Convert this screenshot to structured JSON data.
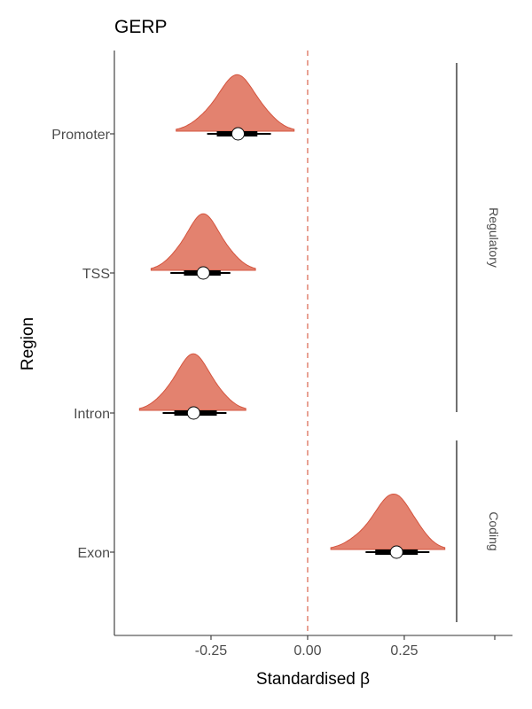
{
  "chart_data": {
    "type": "density-interval",
    "title": "GERP",
    "xlabel": "Standardised β",
    "ylabel": "Region",
    "xlim": [
      -0.5,
      0.53
    ],
    "x_ticks": [
      -0.25,
      0.0,
      0.25
    ],
    "x_tick_labels": [
      "-0.25",
      "0.00",
      "0.25"
    ],
    "reference_line": {
      "x": 0.0,
      "style": "dashed",
      "color": "#e07b68"
    },
    "categories": [
      "Promoter",
      "TSS",
      "Intron",
      "Exon"
    ],
    "series": [
      {
        "category": "Promoter",
        "median": -0.18,
        "interval_66": [
          -0.235,
          -0.13
        ],
        "interval_95": [
          -0.26,
          -0.095
        ],
        "range": [
          -0.34,
          -0.035
        ]
      },
      {
        "category": "TSS",
        "median": -0.27,
        "interval_66": [
          -0.32,
          -0.225
        ],
        "interval_95": [
          -0.355,
          -0.2
        ],
        "range": [
          -0.405,
          -0.135
        ]
      },
      {
        "category": "Intron",
        "median": -0.295,
        "interval_66": [
          -0.345,
          -0.235
        ],
        "interval_95": [
          -0.375,
          -0.21
        ],
        "range": [
          -0.435,
          -0.16
        ]
      },
      {
        "category": "Exon",
        "median": 0.23,
        "interval_66": [
          0.175,
          0.285
        ],
        "interval_95": [
          0.15,
          0.315
        ],
        "range": [
          0.06,
          0.355
        ]
      }
    ],
    "groups": [
      {
        "label": "Regulatory",
        "categories": [
          "Promoter",
          "TSS",
          "Intron"
        ]
      },
      {
        "label": "Coding",
        "categories": [
          "Exon"
        ]
      }
    ],
    "colors": {
      "fill": "#e3826f",
      "stroke": "#d4553f",
      "interval": "#000000",
      "point_fill": "#ffffff"
    },
    "grid": false,
    "legend": "none"
  }
}
